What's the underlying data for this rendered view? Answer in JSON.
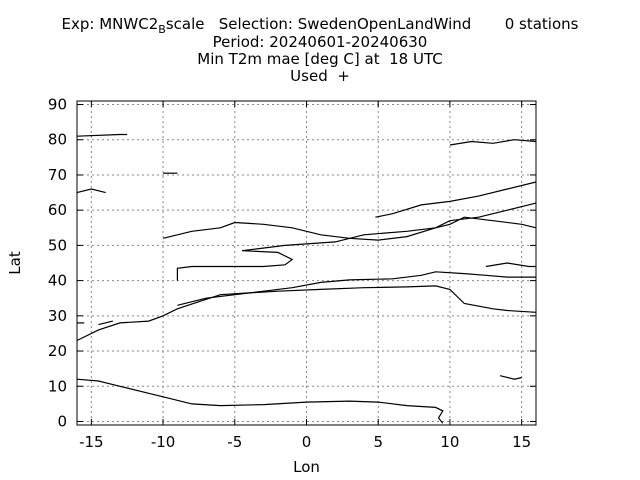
{
  "chart_data": {
    "type": "line",
    "title_lines": [
      "Exp: MNWC2_Bscale   Selection: SwedenOpenLandWind       0 stations",
      "Period: 20240601-20240630",
      "Min T2m mae [deg C] at  18 UTC",
      "Used  +"
    ],
    "title_exp_prefix": "Exp: MNWC2",
    "title_exp_sub": "B",
    "title_exp_suffix": "scale   Selection: SwedenOpenLandWind       0 stations",
    "xlabel": "Lon",
    "ylabel": "Lat",
    "xlim": [
      -16,
      16
    ],
    "ylim": [
      -1,
      91
    ],
    "xticks": [
      -15,
      -10,
      -5,
      0,
      5,
      10,
      15
    ],
    "yticks": [
      0,
      10,
      20,
      30,
      40,
      50,
      60,
      70,
      80,
      90
    ],
    "grid": true,
    "series": [
      {
        "values": [
          [
            -16,
            12
          ],
          [
            -14.5,
            11.5
          ],
          [
            -13,
            10
          ],
          [
            -11,
            8
          ],
          [
            -9.5,
            6.5
          ],
          [
            -8,
            5
          ],
          [
            -6,
            4.5
          ],
          [
            -3,
            4.8
          ],
          [
            0,
            5.5
          ],
          [
            3,
            5.8
          ],
          [
            5,
            5.5
          ],
          [
            7,
            4.5
          ],
          [
            9,
            4
          ],
          [
            9.5,
            3
          ],
          [
            9.2,
            1
          ],
          [
            9.5,
            -0.5
          ]
        ]
      },
      {
        "values": [
          [
            -16,
            23
          ],
          [
            -14.5,
            26
          ],
          [
            -13,
            28
          ],
          [
            -11,
            28.5
          ],
          [
            -10,
            30
          ],
          [
            -9,
            32
          ],
          [
            -7.5,
            34
          ],
          [
            -6,
            36
          ],
          [
            -4,
            36.5
          ],
          [
            -2,
            37
          ],
          [
            1,
            37.5
          ],
          [
            4,
            38
          ],
          [
            7,
            38.2
          ],
          [
            9,
            38.5
          ],
          [
            10,
            37.5
          ],
          [
            11,
            33.5
          ],
          [
            13,
            32
          ],
          [
            14,
            31.5
          ],
          [
            16,
            31
          ]
        ]
      },
      {
        "values": [
          [
            -9,
            33
          ],
          [
            -7,
            35
          ],
          [
            -5,
            36
          ],
          [
            -3,
            37
          ],
          [
            -1,
            38
          ],
          [
            1,
            39.5
          ],
          [
            3,
            40.2
          ],
          [
            6,
            40.5
          ],
          [
            8,
            41.5
          ],
          [
            9,
            42.5
          ],
          [
            11,
            42
          ],
          [
            12.5,
            41.5
          ],
          [
            14,
            41
          ],
          [
            16,
            41
          ]
        ]
      },
      {
        "values": [
          [
            -9,
            40
          ],
          [
            -9,
            43.5
          ],
          [
            -8,
            44
          ],
          [
            -5.5,
            44
          ],
          [
            -3,
            44
          ],
          [
            -1.5,
            44.5
          ],
          [
            -1,
            46
          ],
          [
            -2,
            48
          ],
          [
            -4.5,
            48.5
          ],
          [
            -1.5,
            50
          ],
          [
            2,
            51
          ],
          [
            4,
            53
          ],
          [
            7,
            54
          ],
          [
            9,
            55
          ],
          [
            10,
            56
          ],
          [
            11,
            58
          ],
          [
            13,
            57
          ],
          [
            15,
            56
          ],
          [
            16,
            55
          ]
        ]
      },
      {
        "values": [
          [
            -10,
            52
          ],
          [
            -8,
            54
          ],
          [
            -6,
            55
          ],
          [
            -5,
            56.5
          ],
          [
            -3,
            56
          ],
          [
            -1,
            55
          ],
          [
            1,
            53
          ],
          [
            3,
            52
          ],
          [
            5,
            51.5
          ],
          [
            7,
            52.5
          ],
          [
            9,
            55
          ],
          [
            10,
            57
          ],
          [
            12,
            58
          ],
          [
            14,
            60
          ],
          [
            16,
            62
          ]
        ]
      },
      {
        "values": [
          [
            4.8,
            58
          ],
          [
            6,
            59
          ],
          [
            8,
            61.5
          ],
          [
            10,
            62.5
          ],
          [
            12,
            64
          ],
          [
            14,
            66
          ],
          [
            16,
            68
          ]
        ]
      },
      {
        "values": [
          [
            10,
            78.5
          ],
          [
            11.5,
            79.5
          ],
          [
            13,
            79
          ],
          [
            14.5,
            80
          ],
          [
            16,
            79.5
          ]
        ]
      },
      {
        "values": [
          [
            12.5,
            44
          ],
          [
            14,
            45
          ],
          [
            15.5,
            44
          ],
          [
            16,
            44
          ]
        ]
      },
      {
        "values": [
          [
            -16,
            81
          ],
          [
            -13,
            81.5
          ],
          [
            -12.5,
            81.5
          ]
        ]
      },
      {
        "values": [
          [
            -16,
            65
          ],
          [
            -15,
            66
          ],
          [
            -14,
            65
          ]
        ]
      },
      {
        "values": [
          [
            13.5,
            13
          ],
          [
            14.5,
            12
          ],
          [
            15,
            12.5
          ]
        ]
      },
      {
        "values": [
          [
            -10,
            70.5
          ],
          [
            -9,
            70.5
          ]
        ]
      },
      {
        "values": [
          [
            -16,
            28
          ],
          [
            -15.5,
            28
          ]
        ]
      },
      {
        "values": [
          [
            -14.5,
            27.5
          ],
          [
            -13.5,
            28.5
          ]
        ]
      }
    ]
  }
}
